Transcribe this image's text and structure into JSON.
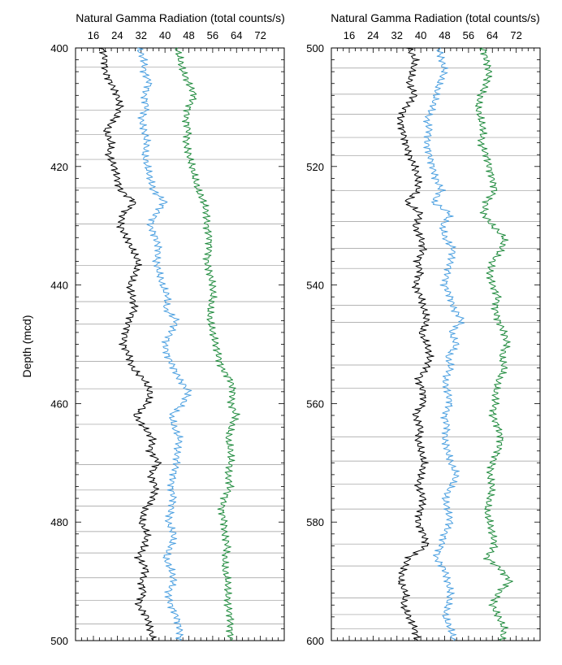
{
  "chart_data": {
    "type": "line",
    "ylabel": "Depth (mcd)",
    "grid": "horizontal core-section lines",
    "panels": [
      {
        "xlabel": "Natural Gamma Radiation (total counts/s)",
        "x_ticks": [
          "16",
          "24",
          "32",
          "40",
          "48",
          "56",
          "64",
          "72"
        ],
        "x_range": [
          10,
          80
        ],
        "ylim": [
          400,
          500
        ],
        "y_ticks": [
          "400",
          "420",
          "440",
          "460",
          "480",
          "500"
        ],
        "section_breaks": [
          403.2,
          410.5,
          414.6,
          418.8,
          423.6,
          429.7,
          436.7,
          442.8,
          446.6,
          452.9,
          457.5,
          463.5,
          470.3,
          474.6,
          477.3,
          481.6,
          485.2,
          489.4,
          493.2,
          497.2
        ],
        "series": [
          {
            "color": "#000000",
            "offset": 0,
            "y": [
              400,
              402,
              404,
              406,
              408,
              410,
              412,
              414,
              416,
              418,
              420,
              422,
              424,
              426,
              428,
              430,
              432,
              434,
              436,
              438,
              440,
              442,
              444,
              446,
              448,
              450,
              452,
              454,
              456,
              458,
              460,
              462,
              464,
              466,
              468,
              470,
              472,
              474,
              476,
              478,
              480,
              482,
              484,
              486,
              488,
              490,
              492,
              494,
              496,
              498,
              500
            ],
            "x": [
              19,
              20,
              20,
              22,
              24,
              25,
              23,
              20,
              22,
              21,
              23,
              24,
              25,
              30,
              26,
              25,
              27,
              29,
              31,
              30,
              28,
              29,
              30,
              28,
              27,
              26,
              28,
              29,
              33,
              35,
              34,
              30,
              33,
              36,
              35,
              38,
              35,
              37,
              36,
              33,
              32,
              34,
              33,
              31,
              34,
              32,
              33,
              31,
              34,
              35,
              36
            ]
          },
          {
            "color": "#4a9fe0",
            "offset": 0,
            "y": [
              400,
              402,
              404,
              406,
              408,
              410,
              412,
              414,
              416,
              418,
              420,
              422,
              424,
              426,
              428,
              430,
              432,
              434,
              436,
              438,
              440,
              442,
              444,
              446,
              448,
              450,
              452,
              454,
              456,
              458,
              460,
              462,
              464,
              466,
              468,
              470,
              472,
              474,
              476,
              478,
              480,
              482,
              484,
              486,
              488,
              490,
              492,
              494,
              496,
              498,
              500
            ],
            "x": [
              31,
              33,
              33,
              35,
              33,
              34,
              32,
              33,
              34,
              33,
              34,
              35,
              36,
              40,
              37,
              35,
              37,
              38,
              37,
              38,
              39,
              41,
              40,
              44,
              42,
              40,
              41,
              43,
              45,
              48,
              46,
              42,
              43,
              45,
              44,
              44,
              43,
              42,
              43,
              42,
              41,
              43,
              42,
              40,
              42,
              43,
              41,
              42,
              44,
              45,
              45
            ]
          },
          {
            "color": "#1e8a3c",
            "offset": 0,
            "y": [
              400,
              402,
              404,
              406,
              408,
              410,
              412,
              414,
              416,
              418,
              420,
              422,
              424,
              426,
              428,
              430,
              432,
              434,
              436,
              438,
              440,
              442,
              444,
              446,
              448,
              450,
              452,
              454,
              456,
              458,
              460,
              462,
              464,
              466,
              468,
              470,
              472,
              474,
              476,
              478,
              480,
              482,
              484,
              486,
              488,
              490,
              492,
              494,
              496,
              498,
              500
            ],
            "x": [
              44,
              45,
              46,
              48,
              50,
              48,
              47,
              48,
              47,
              48,
              49,
              50,
              51,
              53,
              54,
              54,
              55,
              55,
              54,
              55,
              56,
              56,
              55,
              55,
              56,
              57,
              58,
              59,
              62,
              63,
              62,
              64,
              62,
              61,
              62,
              62,
              61,
              62,
              60,
              59,
              60,
              60,
              61,
              60,
              60,
              61,
              61,
              61,
              62,
              62,
              62
            ]
          }
        ]
      },
      {
        "xlabel": "Natural Gamma Radiation (total counts/s)",
        "x_ticks": [
          "16",
          "24",
          "32",
          "40",
          "48",
          "56",
          "64",
          "72"
        ],
        "x_range": [
          10,
          80
        ],
        "ylim": [
          500,
          600
        ],
        "y_ticks": [
          "500",
          "520",
          "540",
          "560",
          "580",
          "600"
        ],
        "section_breaks": [
          503.4,
          507.8,
          511.2,
          515.1,
          518.2,
          524.1,
          529.3,
          533.8,
          537.2,
          543.4,
          546.3,
          553.5,
          557.4,
          565.6,
          569.7,
          573.6,
          577.8,
          583.7,
          587.4,
          592.8,
          595.6,
          598.0
        ],
        "series": [
          {
            "color": "#000000",
            "offset": 0,
            "y": [
              500,
              502,
              504,
              506,
              508,
              510,
              512,
              514,
              516,
              518,
              520,
              522,
              524,
              526,
              528,
              530,
              532,
              534,
              536,
              538,
              540,
              542,
              544,
              546,
              548,
              550,
              552,
              554,
              556,
              558,
              560,
              562,
              564,
              566,
              568,
              570,
              572,
              574,
              576,
              578,
              580,
              582,
              584,
              586,
              588,
              590,
              592,
              594,
              596,
              598,
              600
            ],
            "x": [
              36,
              38,
              37,
              36,
              38,
              35,
              33,
              34,
              35,
              36,
              38,
              39,
              39,
              35,
              40,
              38,
              40,
              41,
              39,
              40,
              38,
              40,
              41,
              42,
              40,
              42,
              43,
              42,
              39,
              41,
              41,
              38,
              40,
              39,
              40,
              41,
              40,
              39,
              41,
              40,
              39,
              41,
              42,
              36,
              34,
              33,
              35,
              34,
              36,
              38,
              39
            ]
          },
          {
            "color": "#4a9fe0",
            "offset": 0,
            "y": [
              500,
              502,
              504,
              506,
              508,
              510,
              512,
              514,
              516,
              518,
              520,
              522,
              524,
              526,
              528,
              530,
              532,
              534,
              536,
              538,
              540,
              542,
              544,
              546,
              548,
              550,
              552,
              554,
              556,
              558,
              560,
              562,
              564,
              566,
              568,
              570,
              572,
              574,
              576,
              578,
              580,
              582,
              584,
              586,
              588,
              590,
              592,
              594,
              596,
              598,
              600
            ],
            "x": [
              46,
              47,
              48,
              46,
              45,
              44,
              42,
              43,
              42,
              43,
              44,
              45,
              47,
              44,
              50,
              47,
              48,
              51,
              50,
              49,
              48,
              50,
              51,
              54,
              50,
              52,
              49,
              50,
              48,
              49,
              50,
              48,
              49,
              48,
              49,
              50,
              52,
              50,
              48,
              49,
              50,
              48,
              47,
              45,
              48,
              49,
              50,
              49,
              48,
              50,
              51
            ]
          },
          {
            "color": "#1e8a3c",
            "offset": 0,
            "y": [
              500,
              502,
              504,
              506,
              508,
              510,
              512,
              514,
              516,
              518,
              520,
              522,
              524,
              526,
              528,
              530,
              532,
              534,
              536,
              538,
              540,
              542,
              544,
              546,
              548,
              550,
              552,
              554,
              556,
              558,
              560,
              562,
              564,
              566,
              568,
              570,
              572,
              574,
              576,
              578,
              580,
              582,
              584,
              586,
              588,
              590,
              592,
              594,
              596,
              598,
              600
            ],
            "x": [
              61,
              62,
              63,
              62,
              60,
              59,
              60,
              61,
              60,
              62,
              63,
              64,
              65,
              62,
              61,
              64,
              68,
              67,
              64,
              63,
              64,
              66,
              65,
              66,
              68,
              69,
              67,
              68,
              66,
              65,
              65,
              64,
              66,
              67,
              66,
              64,
              63,
              64,
              63,
              62,
              63,
              64,
              65,
              62,
              67,
              70,
              66,
              64,
              66,
              68,
              67
            ]
          }
        ]
      }
    ]
  }
}
